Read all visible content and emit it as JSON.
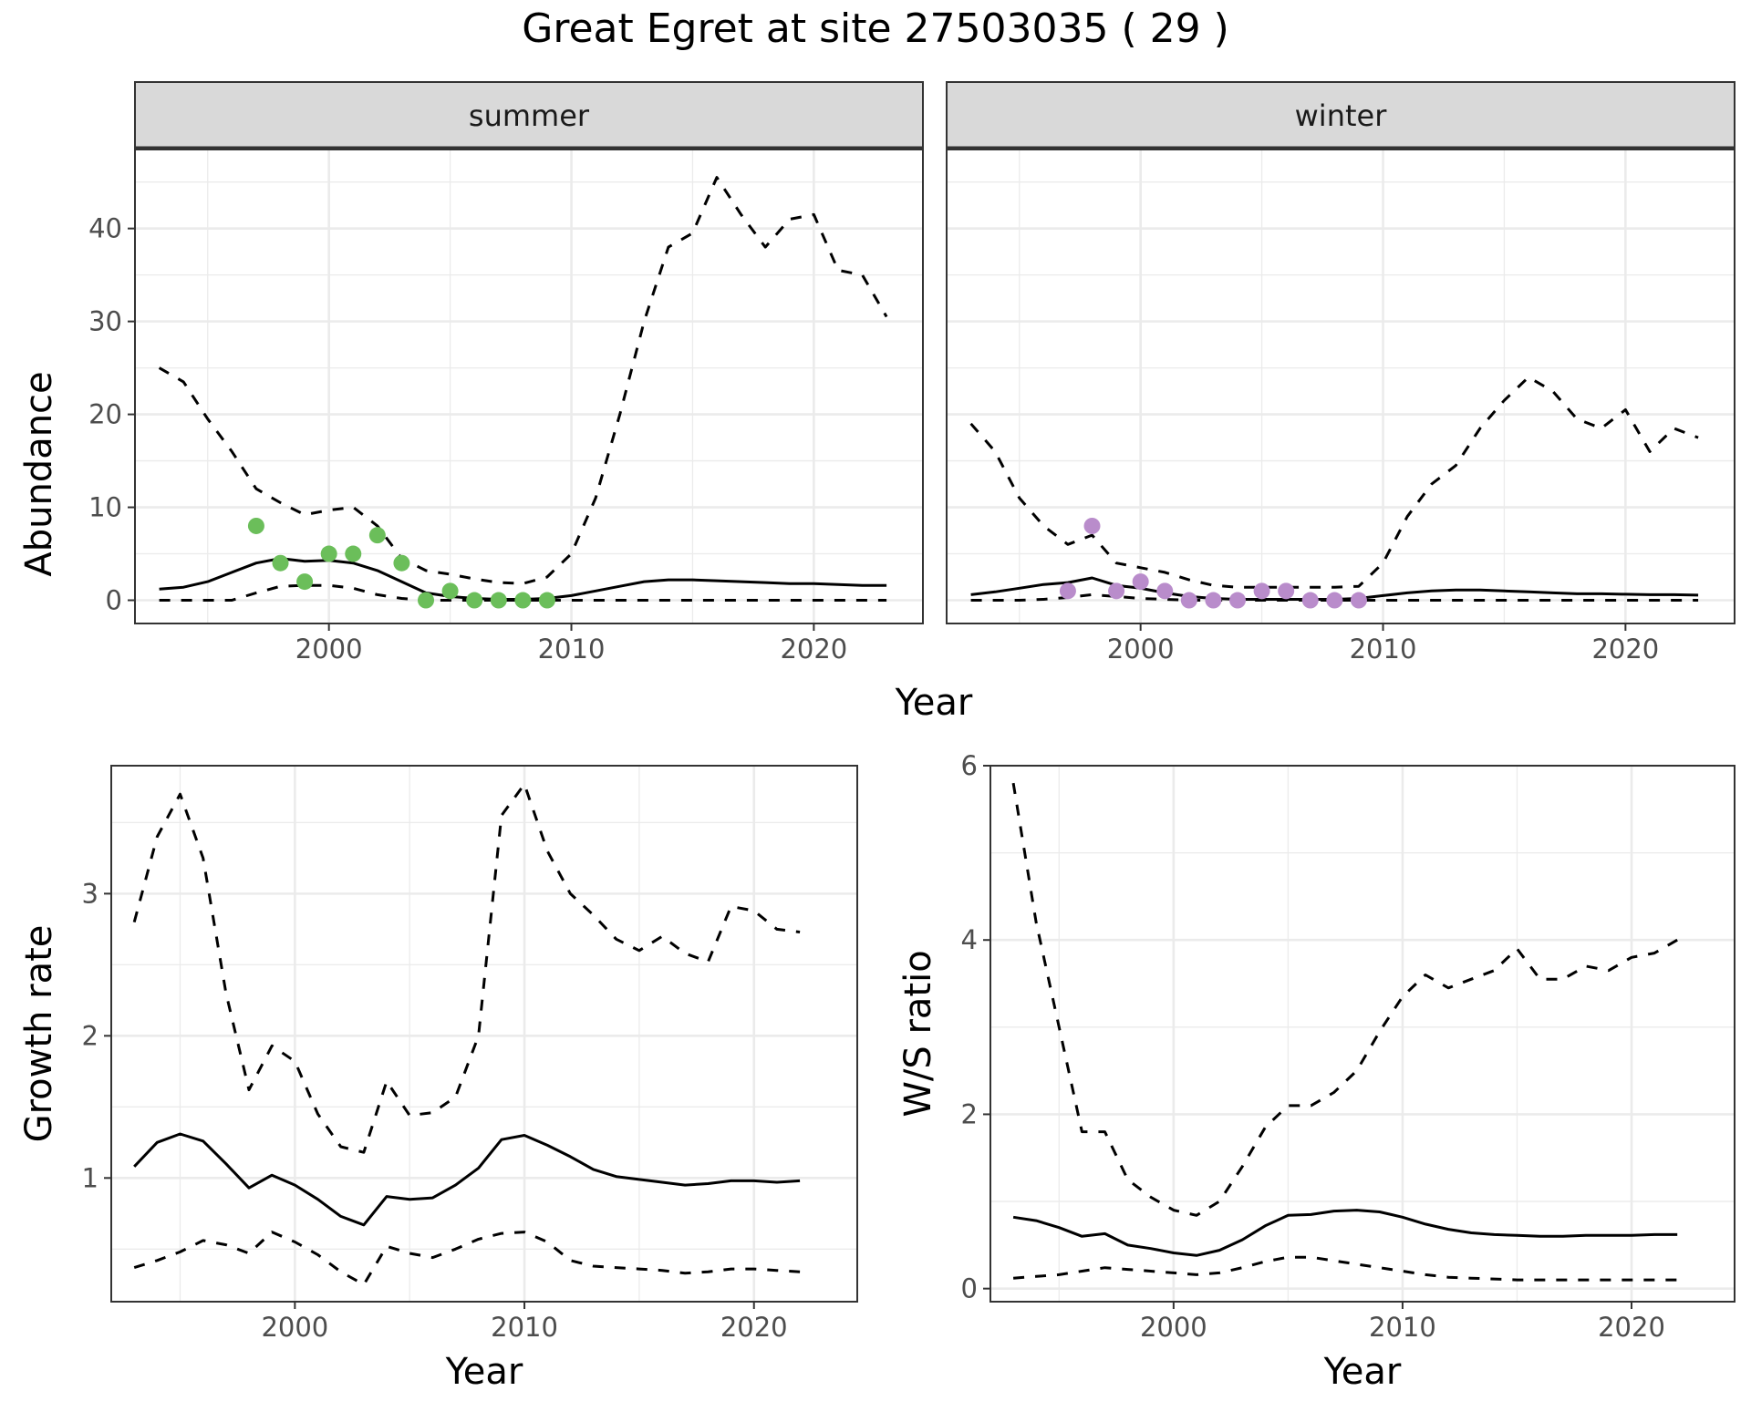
{
  "title": "Great Egret at site 27503035 ( 29 )",
  "colors": {
    "summer_points": "#6BBE5A",
    "winter_points": "#B98CCB",
    "lines": "#000000",
    "grid": "#EBEBEB",
    "strip_bg": "#D9D9D9"
  },
  "chart_data": [
    {
      "type": "line",
      "panel": "summer",
      "strip_label": "summer",
      "xlabel": "Year",
      "ylabel": "Abundance",
      "xlim": [
        1992,
        2024.5
      ],
      "ylim": [
        -2.5,
        48.5
      ],
      "x_ticks": [
        2000,
        2010,
        2020
      ],
      "y_ticks": [
        0,
        10,
        20,
        30,
        40
      ],
      "grid": true,
      "series": [
        {
          "role": "estimate",
          "style": "solid",
          "x": [
            1993,
            1994,
            1995,
            1996,
            1997,
            1998,
            1999,
            2000,
            2001,
            2002,
            2003,
            2004,
            2005,
            2006,
            2007,
            2008,
            2009,
            2010,
            2011,
            2012,
            2013,
            2014,
            2015,
            2016,
            2017,
            2018,
            2019,
            2020,
            2021,
            2022,
            2023
          ],
          "y": [
            1.2,
            1.4,
            2.0,
            3.0,
            4.0,
            4.5,
            4.2,
            4.3,
            4.0,
            3.2,
            2.0,
            0.8,
            0.4,
            0.2,
            0.1,
            0.1,
            0.2,
            0.5,
            1.0,
            1.5,
            2.0,
            2.2,
            2.2,
            2.1,
            2.0,
            1.9,
            1.8,
            1.8,
            1.7,
            1.6,
            1.6
          ]
        },
        {
          "role": "upper",
          "style": "dashed",
          "x": [
            1993,
            1994,
            1995,
            1996,
            1997,
            1998,
            1999,
            2000,
            2001,
            2002,
            2003,
            2004,
            2005,
            2006,
            2007,
            2008,
            2009,
            2010,
            2011,
            2012,
            2013,
            2014,
            2015,
            2016,
            2017,
            2018,
            2019,
            2020,
            2021,
            2022,
            2023
          ],
          "y": [
            25,
            23.5,
            19.5,
            16,
            12,
            10.5,
            9.2,
            9.7,
            10,
            8,
            4.5,
            3.2,
            2.8,
            2.3,
            1.9,
            1.8,
            2.5,
            5,
            11,
            20,
            30,
            38,
            39.5,
            45.5,
            41.5,
            38,
            41,
            41.5,
            35.5,
            35,
            30.5
          ]
        },
        {
          "role": "lower",
          "style": "dashed",
          "x": [
            1993,
            1994,
            1995,
            1996,
            1997,
            1998,
            1999,
            2000,
            2001,
            2002,
            2003,
            2004,
            2005,
            2006,
            2007,
            2008,
            2009,
            2010,
            2011,
            2012,
            2013,
            2014,
            2015,
            2016,
            2017,
            2018,
            2019,
            2020,
            2021,
            2022,
            2023
          ],
          "y": [
            0,
            0,
            0,
            0,
            0.8,
            1.5,
            1.6,
            1.6,
            1.3,
            0.6,
            0.2,
            0,
            0,
            0,
            0,
            0,
            0,
            0,
            0,
            0,
            0,
            0,
            0,
            0,
            0,
            0,
            0,
            0,
            0,
            0,
            0
          ]
        }
      ],
      "points": {
        "x": [
          1997,
          1998,
          1999,
          2000,
          2001,
          2002,
          2003,
          2004,
          2005,
          2006,
          2007,
          2008,
          2009
        ],
        "y": [
          8,
          4,
          2,
          5,
          5,
          7,
          4,
          0,
          1,
          0,
          0,
          0,
          0
        ]
      }
    },
    {
      "type": "line",
      "panel": "winter",
      "strip_label": "winter",
      "xlabel": "Year",
      "ylabel": "Abundance",
      "xlim": [
        1992,
        2024.5
      ],
      "ylim": [
        -2.5,
        48.5
      ],
      "x_ticks": [
        2000,
        2010,
        2020
      ],
      "y_ticks": [
        0,
        10,
        20,
        30,
        40
      ],
      "grid": true,
      "series": [
        {
          "role": "estimate",
          "style": "solid",
          "x": [
            1993,
            1994,
            1995,
            1996,
            1997,
            1998,
            1999,
            2000,
            2001,
            2002,
            2003,
            2004,
            2005,
            2006,
            2007,
            2008,
            2009,
            2010,
            2011,
            2012,
            2013,
            2014,
            2015,
            2016,
            2017,
            2018,
            2019,
            2020,
            2021,
            2022,
            2023
          ],
          "y": [
            0.6,
            0.9,
            1.3,
            1.7,
            1.9,
            2.4,
            1.6,
            1.3,
            0.8,
            0.4,
            0.2,
            0.1,
            0.1,
            0.1,
            0.1,
            0.1,
            0.2,
            0.5,
            0.8,
            1.0,
            1.1,
            1.1,
            1.0,
            0.9,
            0.8,
            0.7,
            0.7,
            0.65,
            0.6,
            0.6,
            0.55
          ]
        },
        {
          "role": "upper",
          "style": "dashed",
          "x": [
            1993,
            1994,
            1995,
            1996,
            1997,
            1998,
            1999,
            2000,
            2001,
            2002,
            2003,
            2004,
            2005,
            2006,
            2007,
            2008,
            2009,
            2010,
            2011,
            2012,
            2013,
            2014,
            2015,
            2016,
            2017,
            2018,
            2019,
            2020,
            2021,
            2022,
            2023
          ],
          "y": [
            19,
            16,
            11,
            8,
            6,
            7,
            4,
            3.5,
            3,
            2.2,
            1.6,
            1.4,
            1.4,
            1.4,
            1.4,
            1.4,
            1.5,
            4,
            9,
            12.5,
            14.5,
            18.5,
            21.5,
            24,
            22.5,
            19.5,
            18.5,
            20.5,
            16,
            18.5,
            17.5
          ]
        },
        {
          "role": "lower",
          "style": "dashed",
          "x": [
            1993,
            1994,
            1995,
            1996,
            1997,
            1998,
            1999,
            2000,
            2001,
            2002,
            2003,
            2004,
            2005,
            2006,
            2007,
            2008,
            2009,
            2010,
            2011,
            2012,
            2013,
            2014,
            2015,
            2016,
            2017,
            2018,
            2019,
            2020,
            2021,
            2022,
            2023
          ],
          "y": [
            0,
            0,
            0,
            0.1,
            0.3,
            0.6,
            0.4,
            0.2,
            0.1,
            0,
            0,
            0,
            0,
            0,
            0,
            0,
            0,
            0,
            0,
            0,
            0,
            0,
            0,
            0,
            0,
            0,
            0,
            0,
            0,
            0,
            0
          ]
        }
      ],
      "points": {
        "x": [
          1997,
          1998,
          1999,
          2000,
          2001,
          2002,
          2003,
          2004,
          2005,
          2006,
          2007,
          2008,
          2009
        ],
        "y": [
          1,
          8,
          1,
          2,
          1,
          0,
          0,
          0,
          1,
          1,
          0,
          0,
          0
        ]
      }
    },
    {
      "type": "line",
      "panel": "growth",
      "xlabel": "Year",
      "ylabel": "Growth rate",
      "xlim": [
        1992,
        2024.5
      ],
      "ylim": [
        0.13,
        3.9
      ],
      "x_ticks": [
        2000,
        2010,
        2020
      ],
      "y_ticks": [
        1,
        2,
        3
      ],
      "grid": true,
      "series": [
        {
          "role": "estimate",
          "style": "solid",
          "x": [
            1993,
            1994,
            1995,
            1996,
            1997,
            1998,
            1999,
            2000,
            2001,
            2002,
            2003,
            2004,
            2005,
            2006,
            2007,
            2008,
            2009,
            2010,
            2011,
            2012,
            2013,
            2014,
            2015,
            2016,
            2017,
            2018,
            2019,
            2020,
            2021,
            2022
          ],
          "y": [
            1.08,
            1.25,
            1.31,
            1.26,
            1.1,
            0.93,
            1.02,
            0.95,
            0.85,
            0.73,
            0.67,
            0.87,
            0.85,
            0.86,
            0.95,
            1.07,
            1.27,
            1.3,
            1.23,
            1.15,
            1.06,
            1.01,
            0.99,
            0.97,
            0.95,
            0.96,
            0.98,
            0.98,
            0.97,
            0.98
          ]
        },
        {
          "role": "upper",
          "style": "dashed",
          "x": [
            1993,
            1994,
            1995,
            1996,
            1997,
            1998,
            1999,
            2000,
            2001,
            2002,
            2003,
            2004,
            2005,
            2006,
            2007,
            2008,
            2009,
            2010,
            2011,
            2012,
            2013,
            2014,
            2015,
            2016,
            2017,
            2018,
            2019,
            2020,
            2021,
            2022
          ],
          "y": [
            2.8,
            3.4,
            3.7,
            3.25,
            2.3,
            1.62,
            1.93,
            1.82,
            1.45,
            1.22,
            1.18,
            1.68,
            1.44,
            1.46,
            1.57,
            2.0,
            3.55,
            3.77,
            3.3,
            3.0,
            2.85,
            2.68,
            2.6,
            2.7,
            2.58,
            2.52,
            2.91,
            2.88,
            2.75,
            2.73
          ]
        },
        {
          "role": "lower",
          "style": "dashed",
          "x": [
            1993,
            1994,
            1995,
            1996,
            1997,
            1998,
            1999,
            2000,
            2001,
            2002,
            2003,
            2004,
            2005,
            2006,
            2007,
            2008,
            2009,
            2010,
            2011,
            2012,
            2013,
            2014,
            2015,
            2016,
            2017,
            2018,
            2019,
            2020,
            2021,
            2022
          ],
          "y": [
            0.37,
            0.42,
            0.48,
            0.56,
            0.53,
            0.47,
            0.62,
            0.55,
            0.46,
            0.34,
            0.25,
            0.52,
            0.47,
            0.44,
            0.5,
            0.57,
            0.61,
            0.62,
            0.55,
            0.42,
            0.38,
            0.37,
            0.36,
            0.35,
            0.33,
            0.34,
            0.36,
            0.36,
            0.35,
            0.34
          ]
        }
      ]
    },
    {
      "type": "line",
      "panel": "ratio",
      "xlabel": "Year",
      "ylabel": "W/S ratio",
      "xlim": [
        1992,
        2024.5
      ],
      "ylim": [
        -0.15,
        6.0
      ],
      "x_ticks": [
        2000,
        2010,
        2020
      ],
      "y_ticks": [
        0,
        2,
        4,
        6
      ],
      "grid": true,
      "series": [
        {
          "role": "estimate",
          "style": "solid",
          "x": [
            1993,
            1994,
            1995,
            1996,
            1997,
            1998,
            1999,
            2000,
            2001,
            2002,
            2003,
            2004,
            2005,
            2006,
            2007,
            2008,
            2009,
            2010,
            2011,
            2012,
            2013,
            2014,
            2015,
            2016,
            2017,
            2018,
            2019,
            2020,
            2021,
            2022
          ],
          "y": [
            0.82,
            0.78,
            0.7,
            0.6,
            0.63,
            0.5,
            0.46,
            0.41,
            0.38,
            0.44,
            0.56,
            0.72,
            0.84,
            0.85,
            0.89,
            0.9,
            0.88,
            0.82,
            0.74,
            0.68,
            0.64,
            0.62,
            0.61,
            0.6,
            0.6,
            0.61,
            0.61,
            0.61,
            0.62,
            0.62
          ]
        },
        {
          "role": "upper",
          "style": "dashed",
          "x": [
            1993,
            1994,
            1995,
            1996,
            1997,
            1998,
            1999,
            2000,
            2001,
            2002,
            2003,
            2004,
            2005,
            2006,
            2007,
            2008,
            2009,
            2010,
            2011,
            2012,
            2013,
            2014,
            2015,
            2016,
            2017,
            2018,
            2019,
            2020,
            2021,
            2022
          ],
          "y": [
            5.8,
            4.2,
            3.0,
            1.8,
            1.8,
            1.25,
            1.05,
            0.9,
            0.84,
            1.0,
            1.4,
            1.85,
            2.1,
            2.1,
            2.25,
            2.5,
            2.95,
            3.35,
            3.6,
            3.45,
            3.55,
            3.65,
            3.9,
            3.55,
            3.55,
            3.7,
            3.65,
            3.8,
            3.85,
            4.0
          ]
        },
        {
          "role": "lower",
          "style": "dashed",
          "x": [
            1993,
            1994,
            1995,
            1996,
            1997,
            1998,
            1999,
            2000,
            2001,
            2002,
            2003,
            2004,
            2005,
            2006,
            2007,
            2008,
            2009,
            2010,
            2011,
            2012,
            2013,
            2014,
            2015,
            2016,
            2017,
            2018,
            2019,
            2020,
            2021,
            2022
          ],
          "y": [
            0.12,
            0.14,
            0.16,
            0.2,
            0.24,
            0.22,
            0.2,
            0.18,
            0.16,
            0.18,
            0.24,
            0.31,
            0.36,
            0.36,
            0.32,
            0.28,
            0.24,
            0.2,
            0.16,
            0.13,
            0.12,
            0.11,
            0.1,
            0.1,
            0.1,
            0.1,
            0.1,
            0.1,
            0.1,
            0.1
          ]
        }
      ]
    }
  ]
}
